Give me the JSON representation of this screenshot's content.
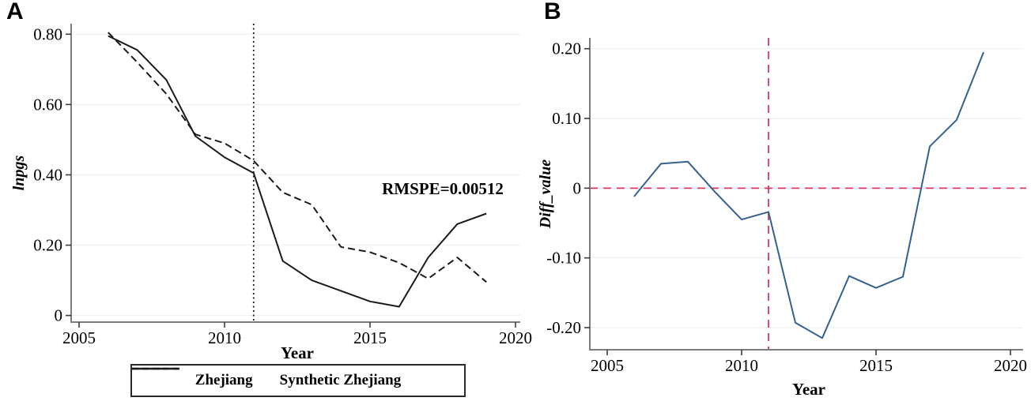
{
  "figure_title": "",
  "chart_data": [
    {
      "type": "line",
      "panel_label": "A",
      "title": "",
      "xlabel": "Year",
      "ylabel": "lnpgs",
      "x": [
        2006,
        2007,
        2008,
        2009,
        2010,
        2011,
        2012,
        2013,
        2014,
        2015,
        2016,
        2017,
        2018,
        2019
      ],
      "series": [
        {
          "name": "Zhejiang",
          "style": "solid",
          "color": "#1a1a1a",
          "values": [
            0.795,
            0.755,
            0.67,
            0.51,
            0.45,
            0.405,
            0.155,
            0.1,
            0.07,
            0.04,
            0.025,
            0.165,
            0.26,
            0.29
          ]
        },
        {
          "name": "Synthetic Zhejiang",
          "style": "dashed",
          "color": "#1a1a1a",
          "values": [
            0.805,
            0.72,
            0.63,
            0.515,
            0.49,
            0.44,
            0.35,
            0.315,
            0.195,
            0.18,
            0.15,
            0.105,
            0.165,
            0.095
          ]
        }
      ],
      "xlim": [
        2004.7,
        2020.3
      ],
      "ylim": [
        -0.02,
        0.84
      ],
      "x_ticks": [
        2005,
        2010,
        2015,
        2020
      ],
      "y_ticks": [
        {
          "v": 0.8,
          "label": "0.80"
        },
        {
          "v": 0.6,
          "label": "0.60"
        },
        {
          "v": 0.4,
          "label": "0.40"
        },
        {
          "v": 0.2,
          "label": "0.20"
        },
        {
          "v": 0.0,
          "label": "0"
        }
      ],
      "grid": true,
      "legend_position": "bottom",
      "event_line_x": 2011,
      "event_line_color": "#1a1a1a",
      "event_line_dash": "2 3.5",
      "annotation": {
        "text": "RMSPE=0.00512",
        "x": 2017.5,
        "y": 0.345
      }
    },
    {
      "type": "line",
      "panel_label": "B",
      "title": "",
      "xlabel": "Year",
      "ylabel": "Diff_value",
      "x": [
        2006,
        2007,
        2008,
        2009,
        2010,
        2011,
        2012,
        2013,
        2014,
        2015,
        2016,
        2017,
        2018,
        2019
      ],
      "series": [
        {
          "name": "Diff_value",
          "style": "solid",
          "color": "#35618e",
          "values": [
            -0.012,
            0.035,
            0.038,
            -0.005,
            -0.045,
            -0.034,
            -0.193,
            -0.215,
            -0.126,
            -0.143,
            -0.127,
            0.06,
            0.098,
            0.195
          ]
        }
      ],
      "xlim": [
        2004.7,
        2020.3
      ],
      "ylim": [
        -0.232,
        0.22
      ],
      "x_ticks": [
        2005,
        2010,
        2015,
        2020
      ],
      "y_ticks": [
        {
          "v": 0.2,
          "label": "0.20"
        },
        {
          "v": 0.1,
          "label": "0.10"
        },
        {
          "v": 0.0,
          "label": "0"
        },
        {
          "v": -0.1,
          "label": "-0.10"
        },
        {
          "v": -0.2,
          "label": "-0.20"
        }
      ],
      "grid": true,
      "event_line_x": 2011,
      "event_line_color": "#d63a62",
      "event_line_dash": "10 7",
      "ref_line_y": 0,
      "ref_line_color": "#d63a62",
      "ref_line_dash": "10 7"
    }
  ]
}
